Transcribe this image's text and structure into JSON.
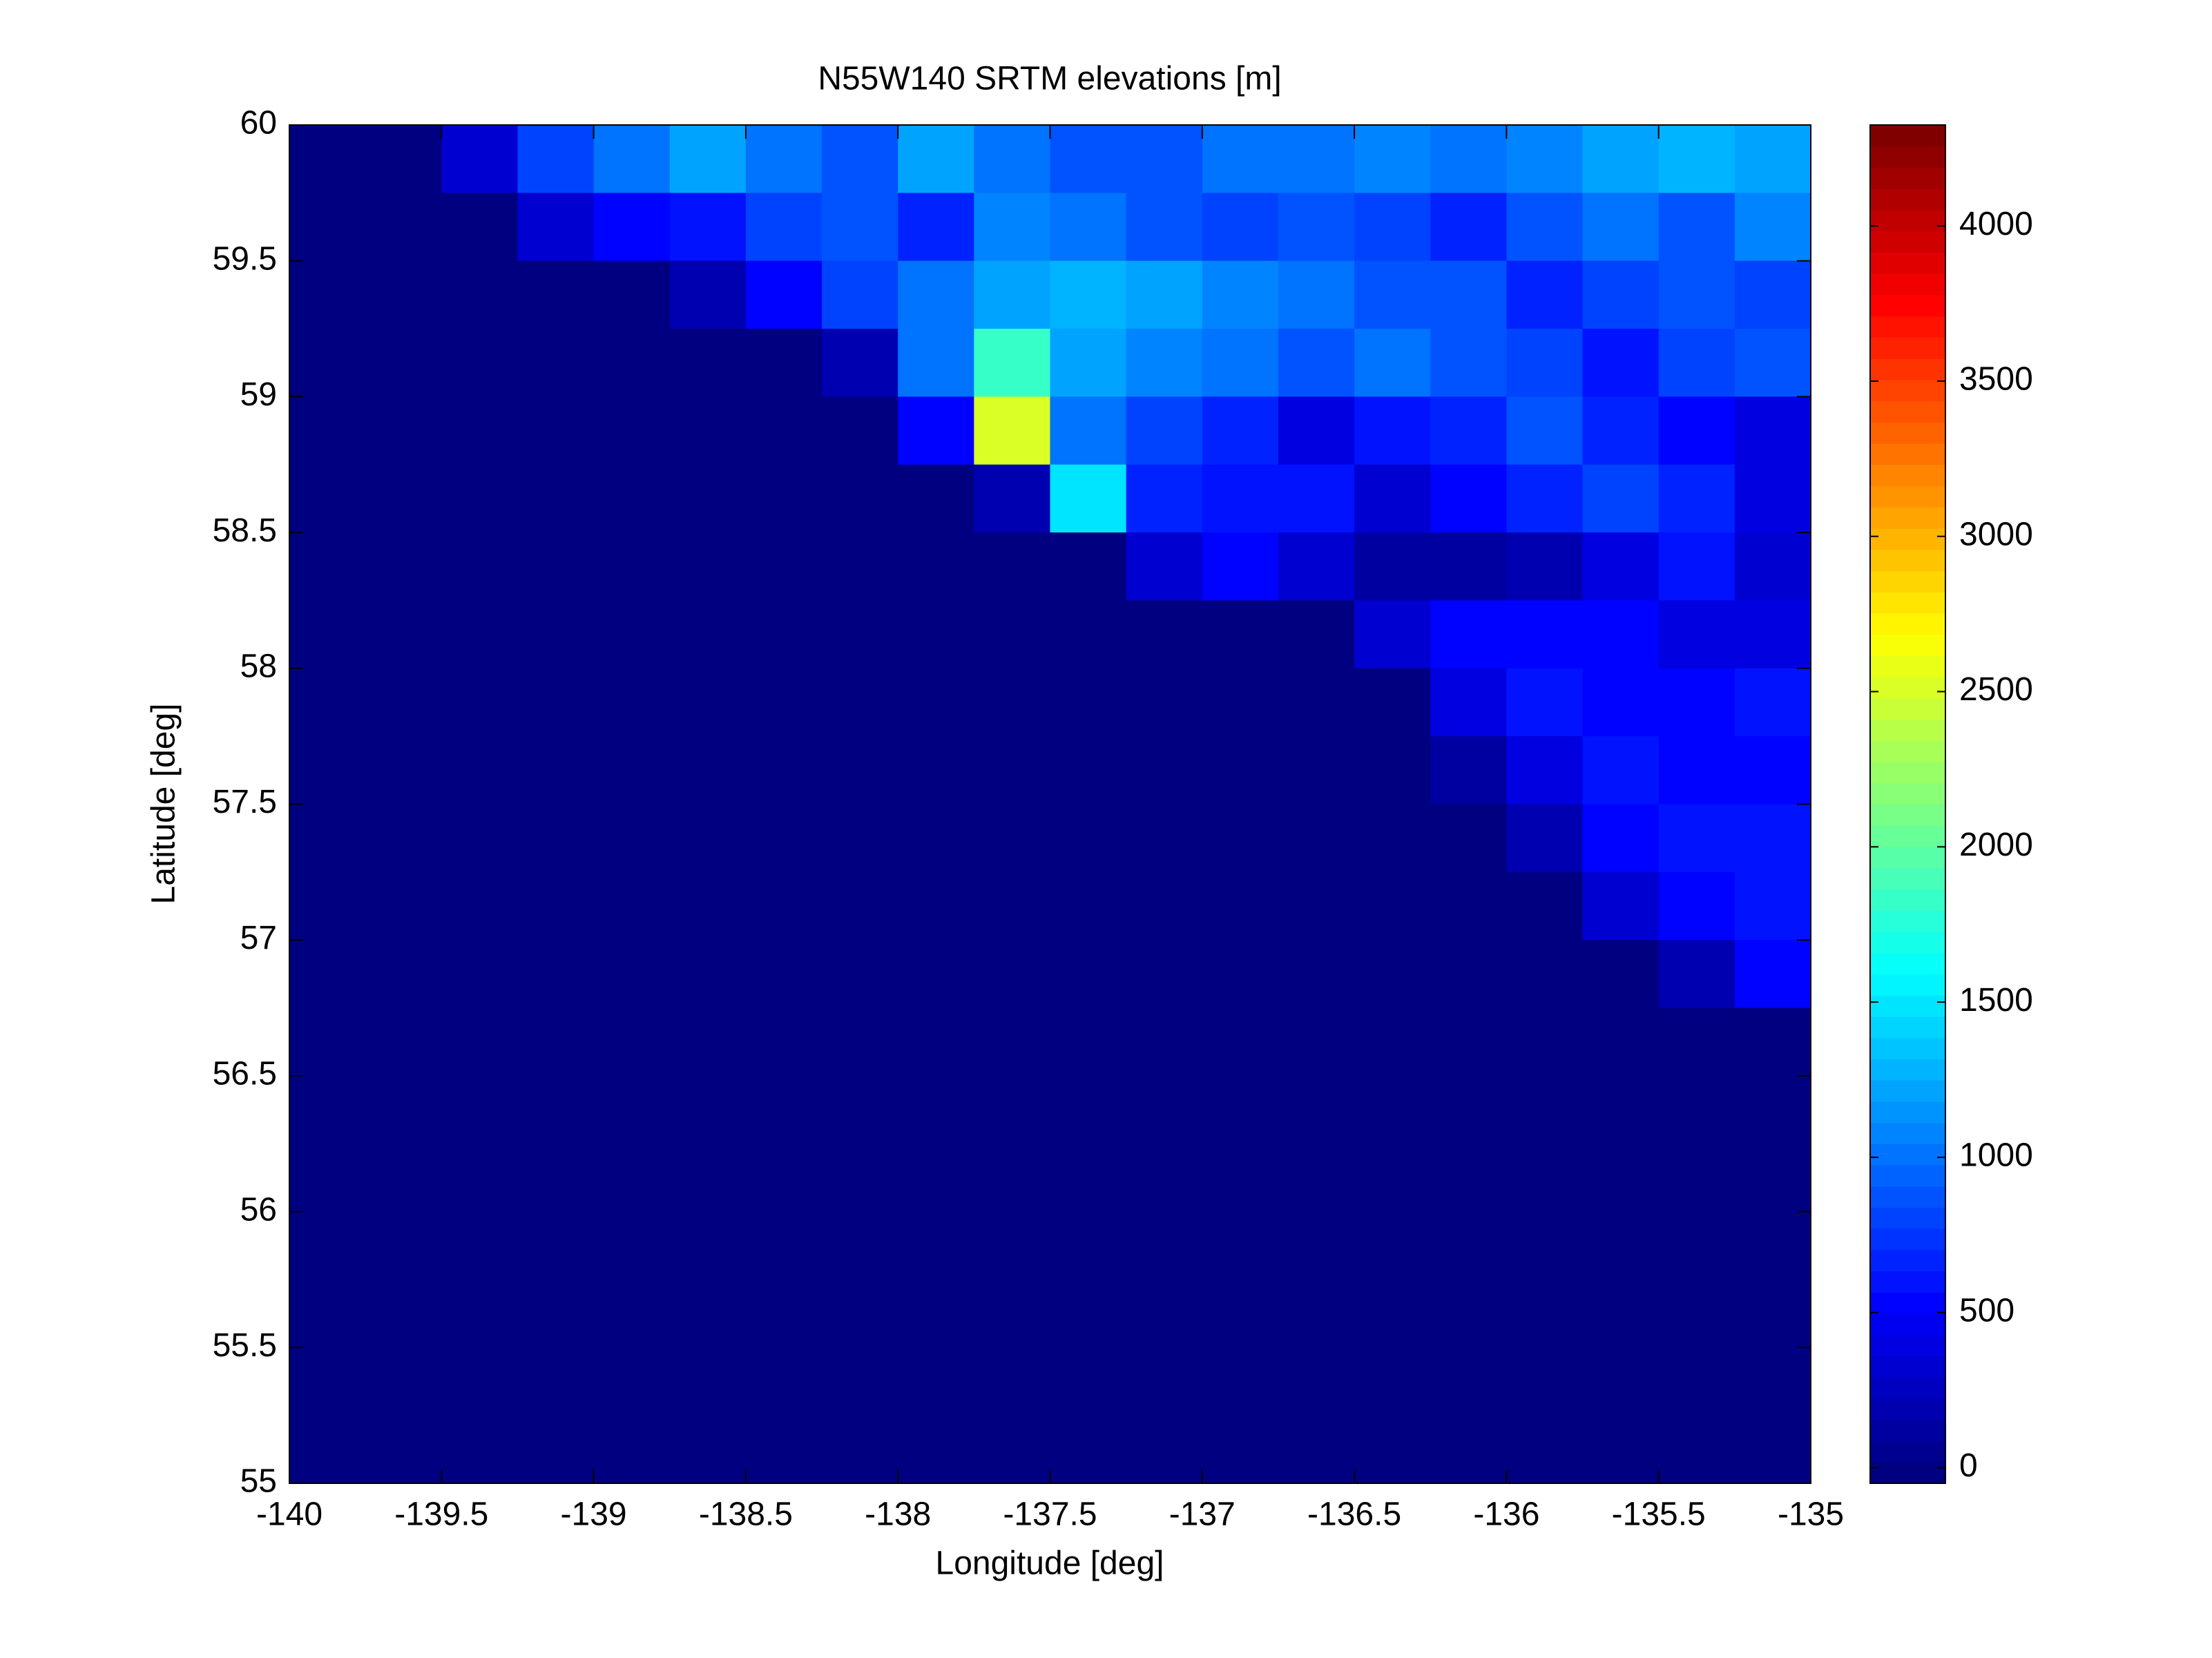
{
  "chart_data": {
    "type": "heatmap",
    "title": "N55W140 SRTM elevations [m]",
    "xlabel": "Longitude [deg]",
    "ylabel": "Latitude [deg]",
    "colormap": "jet",
    "x": [
      -139.875,
      -139.625,
      -139.375,
      -139.125,
      -138.875,
      -138.625,
      -138.375,
      -138.125,
      -137.875,
      -137.625,
      -137.375,
      -137.125,
      -136.875,
      -136.625,
      -136.375,
      -136.125,
      -135.875,
      -135.625,
      -135.375,
      -135.125
    ],
    "y": [
      59.875,
      59.625,
      59.375,
      59.125,
      58.875,
      58.625,
      58.375,
      58.125,
      57.875,
      57.625,
      57.375,
      57.125,
      56.875,
      56.625,
      56.375,
      56.125,
      55.875,
      55.625,
      55.375,
      55.125
    ],
    "z": [
      [
        0,
        0,
        300,
        800,
        1000,
        1200,
        1000,
        900,
        1200,
        1000,
        900,
        900,
        1000,
        1000,
        1100,
        1000,
        1100,
        1200,
        1300,
        1200
      ],
      [
        0,
        0,
        0,
        300,
        500,
        600,
        800,
        900,
        700,
        1100,
        1000,
        900,
        800,
        900,
        800,
        700,
        900,
        1000,
        900,
        1100
      ],
      [
        0,
        0,
        0,
        0,
        0,
        200,
        500,
        800,
        1000,
        1200,
        1300,
        1200,
        1100,
        1000,
        900,
        900,
        700,
        800,
        900,
        800
      ],
      [
        0,
        0,
        0,
        0,
        0,
        0,
        0,
        200,
        1000,
        1800,
        1200,
        1100,
        1000,
        900,
        1000,
        900,
        800,
        600,
        800,
        900
      ],
      [
        0,
        0,
        0,
        0,
        0,
        0,
        0,
        0,
        500,
        2500,
        1000,
        800,
        700,
        400,
        600,
        700,
        900,
        700,
        500,
        400
      ],
      [
        0,
        0,
        0,
        0,
        0,
        0,
        0,
        0,
        0,
        200,
        1500,
        700,
        600,
        600,
        300,
        500,
        700,
        800,
        700,
        400
      ],
      [
        0,
        0,
        0,
        0,
        0,
        0,
        0,
        0,
        0,
        0,
        0,
        300,
        500,
        300,
        100,
        100,
        200,
        400,
        600,
        300
      ],
      [
        0,
        0,
        0,
        0,
        0,
        0,
        0,
        0,
        0,
        0,
        0,
        0,
        0,
        0,
        300,
        500,
        500,
        500,
        400,
        400
      ],
      [
        0,
        0,
        0,
        0,
        0,
        0,
        0,
        0,
        0,
        0,
        0,
        0,
        0,
        0,
        0,
        400,
        600,
        500,
        500,
        600
      ],
      [
        0,
        0,
        0,
        0,
        0,
        0,
        0,
        0,
        0,
        0,
        0,
        0,
        0,
        0,
        0,
        100,
        400,
        600,
        500,
        500
      ],
      [
        0,
        0,
        0,
        0,
        0,
        0,
        0,
        0,
        0,
        0,
        0,
        0,
        0,
        0,
        0,
        0,
        200,
        500,
        600,
        600
      ],
      [
        0,
        0,
        0,
        0,
        0,
        0,
        0,
        0,
        0,
        0,
        0,
        0,
        0,
        0,
        0,
        0,
        0,
        300,
        500,
        600
      ],
      [
        0,
        0,
        0,
        0,
        0,
        0,
        0,
        0,
        0,
        0,
        0,
        0,
        0,
        0,
        0,
        0,
        0,
        0,
        200,
        500
      ],
      [
        0,
        0,
        0,
        0,
        0,
        0,
        0,
        0,
        0,
        0,
        0,
        0,
        0,
        0,
        0,
        0,
        0,
        0,
        0,
        0
      ],
      [
        0,
        0,
        0,
        0,
        0,
        0,
        0,
        0,
        0,
        0,
        0,
        0,
        0,
        0,
        0,
        0,
        0,
        0,
        0,
        0
      ],
      [
        0,
        0,
        0,
        0,
        0,
        0,
        0,
        0,
        0,
        0,
        0,
        0,
        0,
        0,
        0,
        0,
        0,
        0,
        0,
        0
      ],
      [
        0,
        0,
        0,
        0,
        0,
        0,
        0,
        0,
        0,
        0,
        0,
        0,
        0,
        0,
        0,
        0,
        0,
        0,
        0,
        0
      ],
      [
        0,
        0,
        0,
        0,
        0,
        0,
        0,
        0,
        0,
        0,
        0,
        0,
        0,
        0,
        0,
        0,
        0,
        0,
        0,
        0
      ],
      [
        0,
        0,
        0,
        0,
        0,
        0,
        0,
        0,
        0,
        0,
        0,
        0,
        0,
        0,
        0,
        0,
        0,
        0,
        0,
        0
      ],
      [
        0,
        0,
        0,
        0,
        0,
        0,
        0,
        0,
        0,
        0,
        0,
        0,
        0,
        0,
        0,
        0,
        0,
        0,
        0,
        0
      ]
    ],
    "xlim": [
      -140,
      -135
    ],
    "xticks": [
      -140,
      -139.5,
      -139,
      -138.5,
      -138,
      -137.5,
      -137,
      -136.5,
      -136,
      -135.5,
      -135
    ],
    "ylim": [
      55,
      60
    ],
    "yticks": [
      55,
      55.5,
      56,
      56.5,
      57,
      57.5,
      58,
      58.5,
      59,
      59.5,
      60
    ],
    "clim": [
      -50,
      4325
    ],
    "cticks": [
      0,
      500,
      1000,
      1500,
      2000,
      2500,
      3000,
      3500,
      4000
    ]
  }
}
